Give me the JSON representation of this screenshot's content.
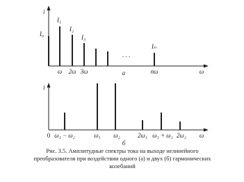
{
  "top": {
    "axis_label": "i",
    "amplitudes": [
      "I₀",
      "I₁",
      "I₂",
      "I₃",
      "Iₙ"
    ],
    "ellipsis": ". . .",
    "freqs": [
      "ω",
      "2ω",
      "3ω",
      "nω"
    ],
    "x_axis_label": "ω",
    "panel": "а"
  },
  "bottom": {
    "axis_label": "i",
    "origin": "0",
    "freqs": [
      "ω₁ − ω₂",
      "ω₁",
      "ω₂",
      "2ω₁",
      "ω₁ + ω₂",
      "2ω₂"
    ],
    "x_axis_label": "ω",
    "panel": "б"
  },
  "caption": [
    "Рис. 3.5. Амплитудные спектры тока на выходе нелинейного",
    "преобразователя при воздействии одного (а) и двух (б) гармонических",
    "колебаний"
  ]
}
